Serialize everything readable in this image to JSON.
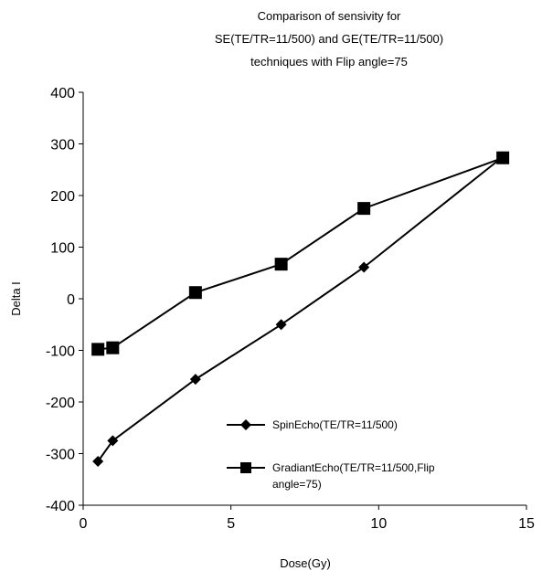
{
  "chart_data": {
    "type": "line",
    "title_lines": [
      "Comparison of sensivity for",
      "SE(TE/TR=11/500) and GE(TE/TR=11/500)",
      "techniques with Flip angle=75"
    ],
    "xlabel": "Dose(Gy)",
    "ylabel": "Delta I",
    "xlim": [
      0,
      15
    ],
    "ylim": [
      -400,
      400
    ],
    "x_ticks": [
      0,
      5,
      10,
      15
    ],
    "y_ticks": [
      -400,
      -300,
      -200,
      -100,
      0,
      100,
      200,
      300,
      400
    ],
    "grid": false,
    "legend_position": "bottom-right",
    "series": [
      {
        "name": "SpinEcho(TE/TR=11/500)",
        "marker": "diamond",
        "color": "#000000",
        "points": [
          {
            "x": 0.5,
            "y": -315
          },
          {
            "x": 1.0,
            "y": -275
          },
          {
            "x": 3.8,
            "y": -156
          },
          {
            "x": 6.7,
            "y": -50
          },
          {
            "x": 9.5,
            "y": 61
          },
          {
            "x": 14.2,
            "y": 275
          }
        ]
      },
      {
        "name": "GradiantEcho(TE/TR=11/500,Flip",
        "name_line2": "angle=75)",
        "marker": "square",
        "color": "#000000",
        "points": [
          {
            "x": 0.5,
            "y": -98
          },
          {
            "x": 1.0,
            "y": -95
          },
          {
            "x": 3.8,
            "y": 12
          },
          {
            "x": 6.7,
            "y": 67
          },
          {
            "x": 9.5,
            "y": 175
          },
          {
            "x": 14.2,
            "y": 273
          }
        ]
      }
    ]
  }
}
